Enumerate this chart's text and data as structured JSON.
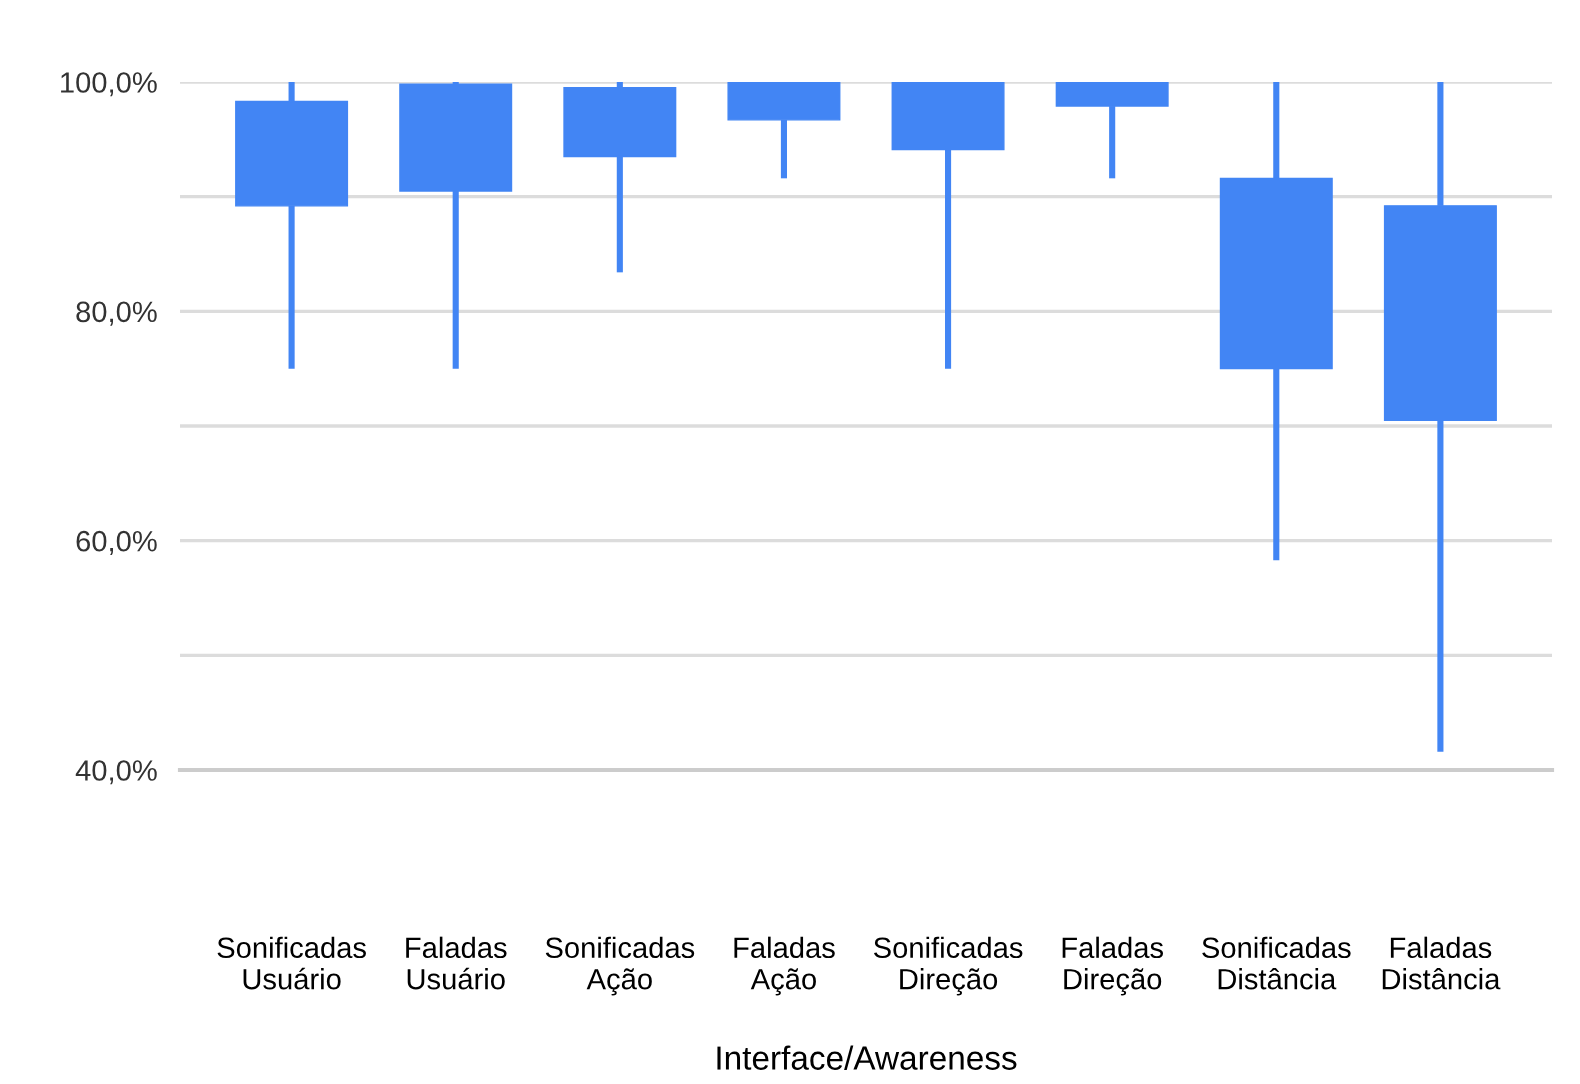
{
  "chart_data": {
    "type": "candlestick",
    "xlabel": "Interface/Awareness",
    "categories": [
      "Sonificadas\nUsuário",
      "Faladas\nUsuário",
      "Sonificadas\nAção",
      "Faladas\nAção",
      "Sonificadas\nDireção",
      "Faladas\nDireção",
      "Sonificadas\nDistância",
      "Faladas\nDistância"
    ],
    "ohlc": [
      [
        89.2,
        100,
        75,
        98.3
      ],
      [
        90.5,
        100,
        75,
        99.8
      ],
      [
        93.5,
        100,
        83.4,
        99.5
      ],
      [
        96.7,
        100,
        91.6,
        100
      ],
      [
        94.1,
        100,
        75,
        100
      ],
      [
        97.9,
        100,
        91.6,
        100
      ],
      [
        75,
        100,
        58.3,
        91.6
      ],
      [
        70.5,
        100,
        41.6,
        89.2
      ]
    ],
    "color": "#4285f4",
    "ylim": [
      40,
      100
    ],
    "yticks": [
      {
        "value": 40,
        "label": "40,0%"
      },
      {
        "value": 50,
        "label": null
      },
      {
        "value": 60,
        "label": "60,0%"
      },
      {
        "value": 70,
        "label": null
      },
      {
        "value": 80,
        "label": "80,0%"
      },
      {
        "value": 90,
        "label": null
      },
      {
        "value": 100,
        "label": "100,0%"
      }
    ],
    "grid": "y"
  }
}
